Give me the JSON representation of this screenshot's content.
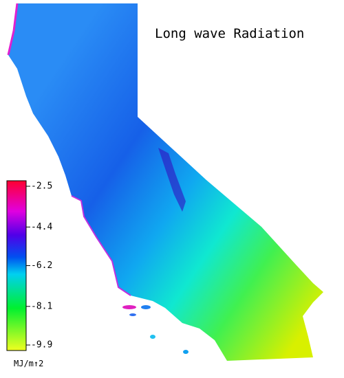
{
  "title": "Long wave Radiation",
  "colorbar": {
    "ticks": [
      -2.5,
      -4.4,
      -6.2,
      -8.1,
      -9.9
    ],
    "unit": "MJ/m↑2"
  }
}
